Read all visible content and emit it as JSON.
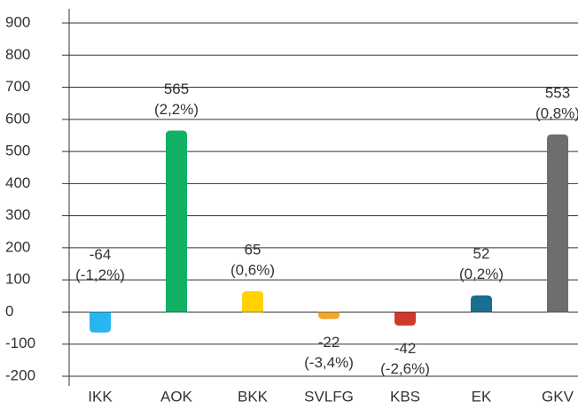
{
  "chart_data": {
    "type": "bar",
    "categories": [
      "IKK",
      "AOK",
      "BKK",
      "SVLFG",
      "KBS",
      "EK",
      "GKV"
    ],
    "values": [
      -64,
      565,
      65,
      -22,
      -42,
      52,
      553
    ],
    "percent_labels": [
      "(-1,2%)",
      "(2,2%)",
      "(0,6%)",
      "(-3,4%)",
      "(-2,6%)",
      "(0,2%)",
      "(0,8%)"
    ],
    "colors": [
      "#29b6f0",
      "#12b065",
      "#ffd200",
      "#f4a62a",
      "#d0392b",
      "#1a6f91",
      "#6e6e70"
    ],
    "ylim": [
      -200,
      900
    ],
    "yticks": [
      -200,
      -100,
      0,
      100,
      200,
      300,
      400,
      500,
      600,
      700,
      800,
      900
    ],
    "grid": true
  }
}
